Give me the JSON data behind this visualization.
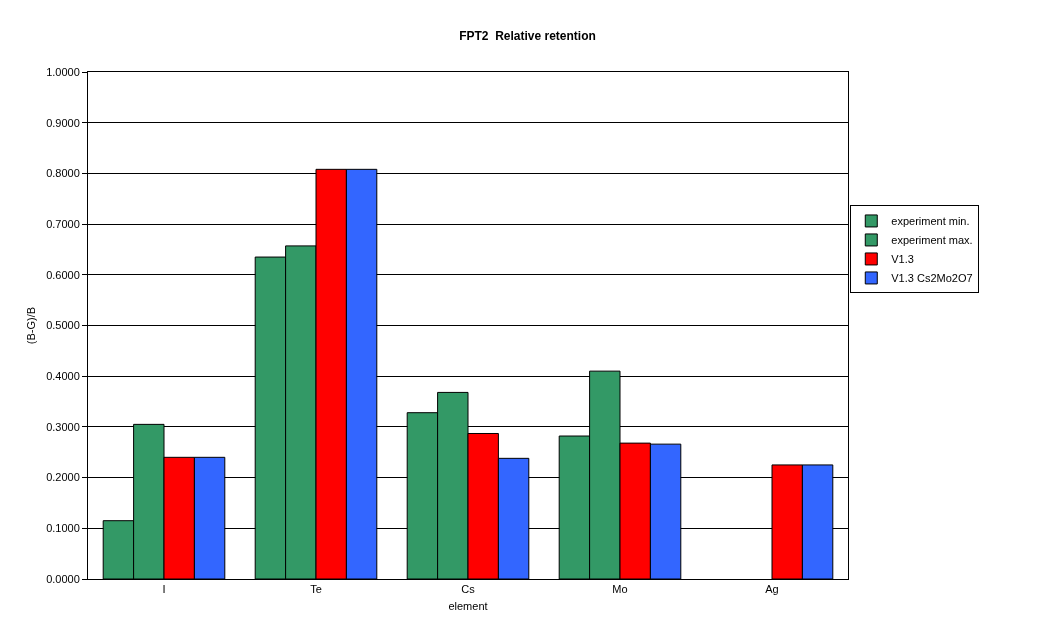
{
  "chart_data": {
    "type": "bar",
    "title": "FPT2  Relative retention",
    "xlabel": "element",
    "ylabel": "(B-G)/B",
    "categories": [
      "I",
      "Te",
      "Cs",
      "Mo",
      "Ag"
    ],
    "series": [
      {
        "name": "experiment min.",
        "color": "#339966",
        "values": [
          0.115,
          0.635,
          0.328,
          0.282,
          null
        ]
      },
      {
        "name": "experiment max.",
        "color": "#339966",
        "values": [
          0.305,
          0.657,
          0.368,
          0.41,
          null
        ]
      },
      {
        "name": "V1.3",
        "color": "#ff0000",
        "values": [
          0.24,
          0.808,
          0.287,
          0.268,
          0.225
        ]
      },
      {
        "name": "V1.3 Cs2Mo2O7",
        "color": "#3366ff",
        "values": [
          0.24,
          0.808,
          0.238,
          0.266,
          0.225
        ]
      }
    ],
    "ylim": [
      0,
      1
    ],
    "yticks": [
      {
        "value": 0,
        "label": "0.0000"
      },
      {
        "value": 0.1,
        "label": "0.1000"
      },
      {
        "value": 0.2,
        "label": "0.2000"
      },
      {
        "value": 0.3,
        "label": "0.3000"
      },
      {
        "value": 0.4,
        "label": "0.4000"
      },
      {
        "value": 0.5,
        "label": "0.5000"
      },
      {
        "value": 0.6,
        "label": "0.6000"
      },
      {
        "value": 0.7,
        "label": "0.7000"
      },
      {
        "value": 0.8,
        "label": "0.8000"
      },
      {
        "value": 0.9,
        "label": "0.9000"
      },
      {
        "value": 1,
        "label": "1.0000"
      }
    ],
    "grid": "y",
    "legend": "right"
  }
}
